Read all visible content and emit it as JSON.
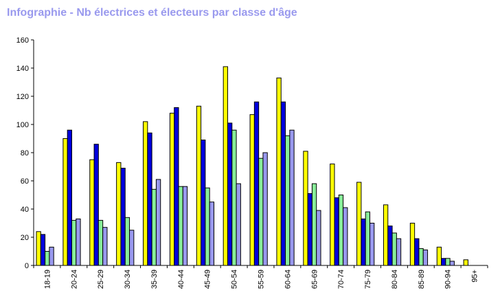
{
  "chart_data": {
    "type": "bar",
    "title": "Infographie - Nb électrices et électeurs par classe d'âge",
    "xlabel": "",
    "ylabel": "",
    "ylim": [
      0,
      160
    ],
    "yticks": [
      0,
      20,
      40,
      60,
      80,
      100,
      120,
      140,
      160
    ],
    "grid": false,
    "legend": "none",
    "categories": [
      "18-19",
      "20-24",
      "25-29",
      "30-34",
      "35-39",
      "40-44",
      "45-49",
      "50-54",
      "55-59",
      "60-64",
      "65-69",
      "70-74",
      "75-79",
      "80-84",
      "85-89",
      "90-94",
      "95+"
    ],
    "series": [
      {
        "color": "#ffff00",
        "values": [
          24,
          90,
          75,
          73,
          102,
          108,
          113,
          141,
          107,
          133,
          81,
          72,
          59,
          43,
          30,
          13,
          4
        ]
      },
      {
        "color": "#0000dd",
        "values": [
          22,
          96,
          86,
          69,
          94,
          112,
          89,
          101,
          116,
          116,
          51,
          48,
          33,
          28,
          19,
          5,
          0
        ]
      },
      {
        "color": "#88ee99",
        "values": [
          10,
          32,
          32,
          34,
          54,
          56,
          55,
          96,
          76,
          92,
          58,
          50,
          38,
          23,
          12,
          5,
          0
        ]
      },
      {
        "color": "#9999ee",
        "values": [
          13,
          33,
          27,
          25,
          61,
          56,
          45,
          58,
          80,
          96,
          39,
          41,
          30,
          19,
          11,
          3,
          0
        ]
      }
    ]
  }
}
